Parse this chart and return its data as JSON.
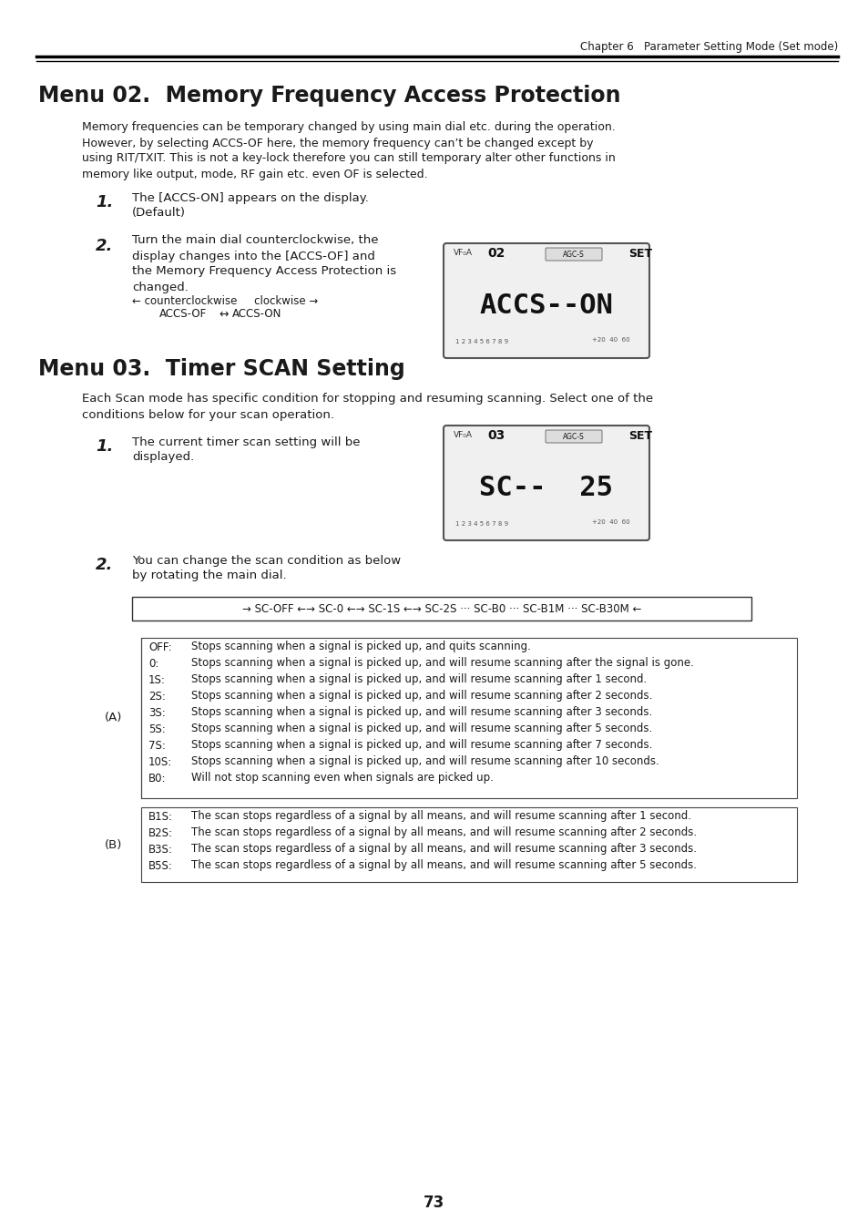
{
  "page_header": "Chapter 6   Parameter Setting Mode (Set mode)",
  "title1": "Menu 02.  Memory Frequency Access Protection",
  "body1": "Memory frequencies can be temporary changed by using main dial etc. during the operation.\nHowever, by selecting ACCS-OF here, the memory frequency can’t be changed except by\nusing RIT/TXIT. This is not a key-lock therefore you can still temporary alter other functions in\nmemory like output, mode, RF gain etc. even OF is selected.",
  "step1_1": "The [ACCS-ON] appears on the display.\n(Default)",
  "step1_2_text": "Turn the main dial counterclockwise, the\ndisplay changes into the [ACCS-OF] and\nthe Memory Frequency Access Protection is\nchanged.",
  "step1_2_arrow_text": "← counterclockwise     clockwise →\n         ACCS-OF ↔ ACCS-ON",
  "lcd1_line1": "ACCS--ON",
  "lcd1_menu": "02",
  "lcd1_badge": "SET",
  "title2": "Menu 03.  Timer SCAN Setting",
  "body2": "Each Scan mode has specific condition for stopping and resuming scanning. Select one of the\nconditions below for your scan operation.",
  "step2_1": "The current timer scan setting will be\ndisplayed.",
  "lcd2_line1": "SC--  25",
  "lcd2_menu": "03",
  "lcd2_badge": "SET",
  "step2_2": "You can change the scan condition as below\nby rotating the main dial.",
  "scan_seq": "→ SC-OFF ←→ SC-0 ←→ SC-1S ←→ SC-2S ··· SC-B0 ··· SC-B1M ··· SC-B30M ←",
  "group_A_label": "(A)",
  "group_A_items": [
    [
      "OFF:",
      "Stops scanning when a signal is picked up, and quits scanning."
    ],
    [
      "0:",
      "Stops scanning when a signal is picked up, and will resume scanning after the signal is gone."
    ],
    [
      "1S:",
      "Stops scanning when a signal is picked up, and will resume scanning after 1 second."
    ],
    [
      "2S:",
      "Stops scanning when a signal is picked up, and will resume scanning after 2 seconds."
    ],
    [
      "3S:",
      "Stops scanning when a signal is picked up, and will resume scanning after 3 seconds."
    ],
    [
      "5S:",
      "Stops scanning when a signal is picked up, and will resume scanning after 5 seconds."
    ],
    [
      "7S:",
      "Stops scanning when a signal is picked up, and will resume scanning after 7 seconds."
    ],
    [
      "10S:",
      "Stops scanning when a signal is picked up, and will resume scanning after 10 seconds."
    ],
    [
      "B0:",
      "Will not stop scanning even when signals are picked up."
    ]
  ],
  "group_B_label": "(B)",
  "group_B_items": [
    [
      "B1S:",
      "The scan stops regardless of a signal by all means, and will resume scanning after 1 second."
    ],
    [
      "B2S:",
      "The scan stops regardless of a signal by all means, and will resume scanning after 2 seconds."
    ],
    [
      "B3S:",
      "The scan stops regardless of a signal by all means, and will resume scanning after 3 seconds."
    ],
    [
      "B5S:",
      "The scan stops regardless of a signal by all means, and will resume scanning after 5 seconds."
    ]
  ],
  "page_number": "73",
  "bg_color": "#ffffff",
  "text_color": "#1a1a1a",
  "header_line_color": "#000000",
  "lcd_bg": "#e8e8e8",
  "lcd_text": "#111111"
}
